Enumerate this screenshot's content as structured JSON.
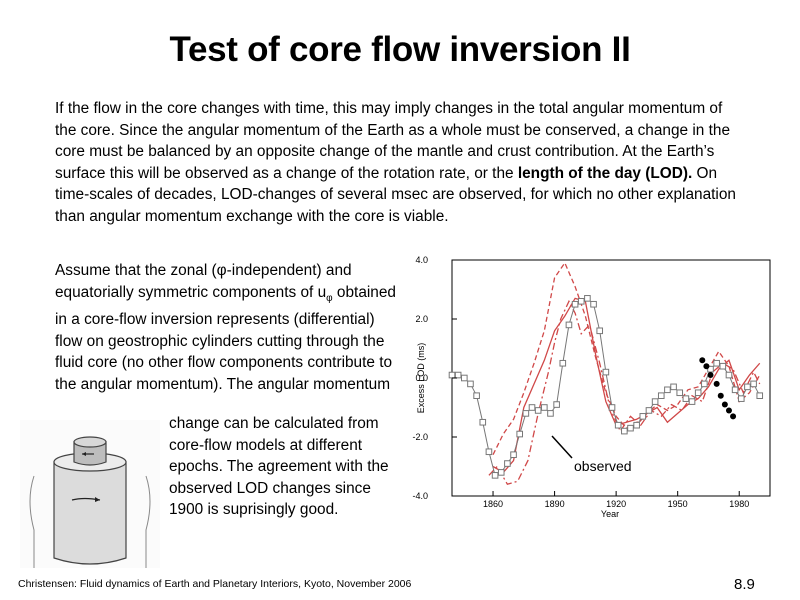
{
  "slide": {
    "title": "Test of core flow inversion II",
    "intro": {
      "before": "If the flow in the core changes with time, this may imply changes in the total angular momentum of the core. Since the angular momentum of the Earth as a whole must be conserved, a change in the core must be balanced by an opposite change of the mantle and crust contribution. At the Earth’s surface this will be observed as a change of the rotation rate, or the ",
      "bold": "length of the day (LOD).",
      "after": " On time-scales of decades, LOD-changes of several msec are observed, for which no other explanation than angular momentum exchange with the core is viable."
    },
    "assume": {
      "text1": "Assume that the zonal (φ-independent) and equatorially symmetric components of u",
      "sub": "φ",
      "text2": " obtained in a core-flow inversion represents (differential) flow on geostrophic cylinders cutting through the fluid core (no other flow components contribute to the angular momentum). The angular momentum"
    },
    "change": "change can be calculated from core-flow models at different epochs. The agreement with the observed LOD changes since 1900 is suprisingly good.",
    "footer": "Christensen: Fluid dynamics of Earth and Planetary Interiors, Kyoto, November 2006",
    "page_number": "8.9"
  },
  "chart_data": {
    "type": "line",
    "xlabel": "Year",
    "ylabel": "Excess LOD (ms)",
    "xlim": [
      1840,
      1995
    ],
    "ylim": [
      -4.0,
      4.0
    ],
    "xticks": [
      1860,
      1890,
      1920,
      1950,
      1980
    ],
    "yticks": [
      -4.0,
      -2.0,
      0.0,
      2.0,
      4.0
    ],
    "ytick_labels": [
      "-4.0",
      "-2.0",
      "0.0",
      "2.0",
      "4.0"
    ],
    "annotation": "observed",
    "colors": {
      "model": "#d04848",
      "observed": "#777777",
      "axis": "#000000",
      "dots": "#000000"
    },
    "series": [
      {
        "style": "solid",
        "color": "#d04848",
        "x": [
          1860,
          1865,
          1870,
          1875,
          1880,
          1885,
          1890,
          1895,
          1900,
          1905,
          1910,
          1915,
          1920,
          1925,
          1930,
          1935,
          1940,
          1945,
          1950,
          1955,
          1960,
          1965,
          1970,
          1975,
          1980,
          1985,
          1990
        ],
        "y": [
          -3.0,
          -3.2,
          -2.8,
          -1.0,
          -0.2,
          0.6,
          1.6,
          2.1,
          2.7,
          2.6,
          0.8,
          -0.8,
          -1.6,
          -1.5,
          -1.4,
          -1.2,
          -1.0,
          -1.5,
          -1.2,
          -0.9,
          -0.7,
          -0.3,
          0.3,
          0.6,
          -0.4,
          0.1,
          0.5
        ]
      },
      {
        "style": "dash",
        "color": "#d04848",
        "x": [
          1860,
          1865,
          1870,
          1875,
          1880,
          1885,
          1890,
          1895,
          1900,
          1905,
          1910,
          1915,
          1920,
          1925,
          1930,
          1935,
          1940,
          1945,
          1950,
          1955,
          1960,
          1965,
          1970,
          1975,
          1980,
          1985,
          1990
        ],
        "y": [
          -2.6,
          -1.9,
          -1.4,
          -0.5,
          0.5,
          1.6,
          3.4,
          3.9,
          3.1,
          2.1,
          0.7,
          -0.5,
          -1.3,
          -1.7,
          -1.6,
          -1.2,
          -0.9,
          -1.1,
          -0.9,
          -0.4,
          -0.3,
          0.3,
          0.9,
          0.4,
          -0.8,
          -0.5,
          0.1
        ]
      },
      {
        "style": "dashdot",
        "color": "#d04848",
        "x": [
          1858,
          1862,
          1867,
          1872,
          1877,
          1882,
          1887,
          1890,
          1893,
          1897,
          1900,
          1903,
          1907,
          1912,
          1917,
          1922,
          1927,
          1932,
          1937,
          1942,
          1947,
          1952,
          1957,
          1962,
          1967,
          1972,
          1977,
          1982,
          1987,
          1990
        ],
        "y": [
          -3.3,
          -3.0,
          -3.6,
          -3.5,
          -2.8,
          -1.2,
          0.2,
          1.2,
          2.0,
          2.6,
          2.2,
          1.5,
          1.8,
          0.5,
          -1.0,
          -1.8,
          -1.3,
          -1.6,
          -1.1,
          -1.3,
          -0.9,
          -1.1,
          -0.6,
          -0.8,
          0.2,
          0.5,
          0.3,
          -0.5,
          0.2,
          -0.2
        ]
      },
      {
        "style": "squares",
        "color": "#777777",
        "x": [
          1840,
          1843,
          1846,
          1849,
          1852,
          1855,
          1858,
          1861,
          1864,
          1867,
          1870,
          1873,
          1876,
          1879,
          1882,
          1885,
          1888,
          1891,
          1894,
          1897,
          1900,
          1903,
          1906,
          1909,
          1912,
          1915,
          1918,
          1921,
          1924,
          1927,
          1930,
          1933,
          1936,
          1939,
          1942,
          1945,
          1948,
          1951,
          1954,
          1957,
          1960,
          1963,
          1966,
          1969,
          1972,
          1975,
          1978,
          1981,
          1984,
          1987,
          1990
        ],
        "y": [
          0.1,
          0.1,
          0.0,
          -0.2,
          -0.6,
          -1.5,
          -2.5,
          -3.3,
          -3.2,
          -2.9,
          -2.6,
          -1.9,
          -1.2,
          -1.0,
          -1.1,
          -1.0,
          -1.2,
          -0.9,
          0.5,
          1.8,
          2.5,
          2.6,
          2.7,
          2.5,
          1.6,
          0.2,
          -1.0,
          -1.6,
          -1.8,
          -1.7,
          -1.6,
          -1.3,
          -1.1,
          -0.8,
          -0.6,
          -0.4,
          -0.3,
          -0.5,
          -0.7,
          -0.8,
          -0.5,
          -0.2,
          0.3,
          0.5,
          0.4,
          0.1,
          -0.4,
          -0.7,
          -0.3,
          -0.2,
          -0.6
        ]
      },
      {
        "style": "dots",
        "color": "#000000",
        "x": [
          1962,
          1964,
          1966,
          1969,
          1971,
          1973,
          1975,
          1977
        ],
        "y": [
          0.6,
          0.4,
          0.1,
          -0.2,
          -0.6,
          -0.9,
          -1.1,
          -1.3
        ]
      }
    ]
  }
}
